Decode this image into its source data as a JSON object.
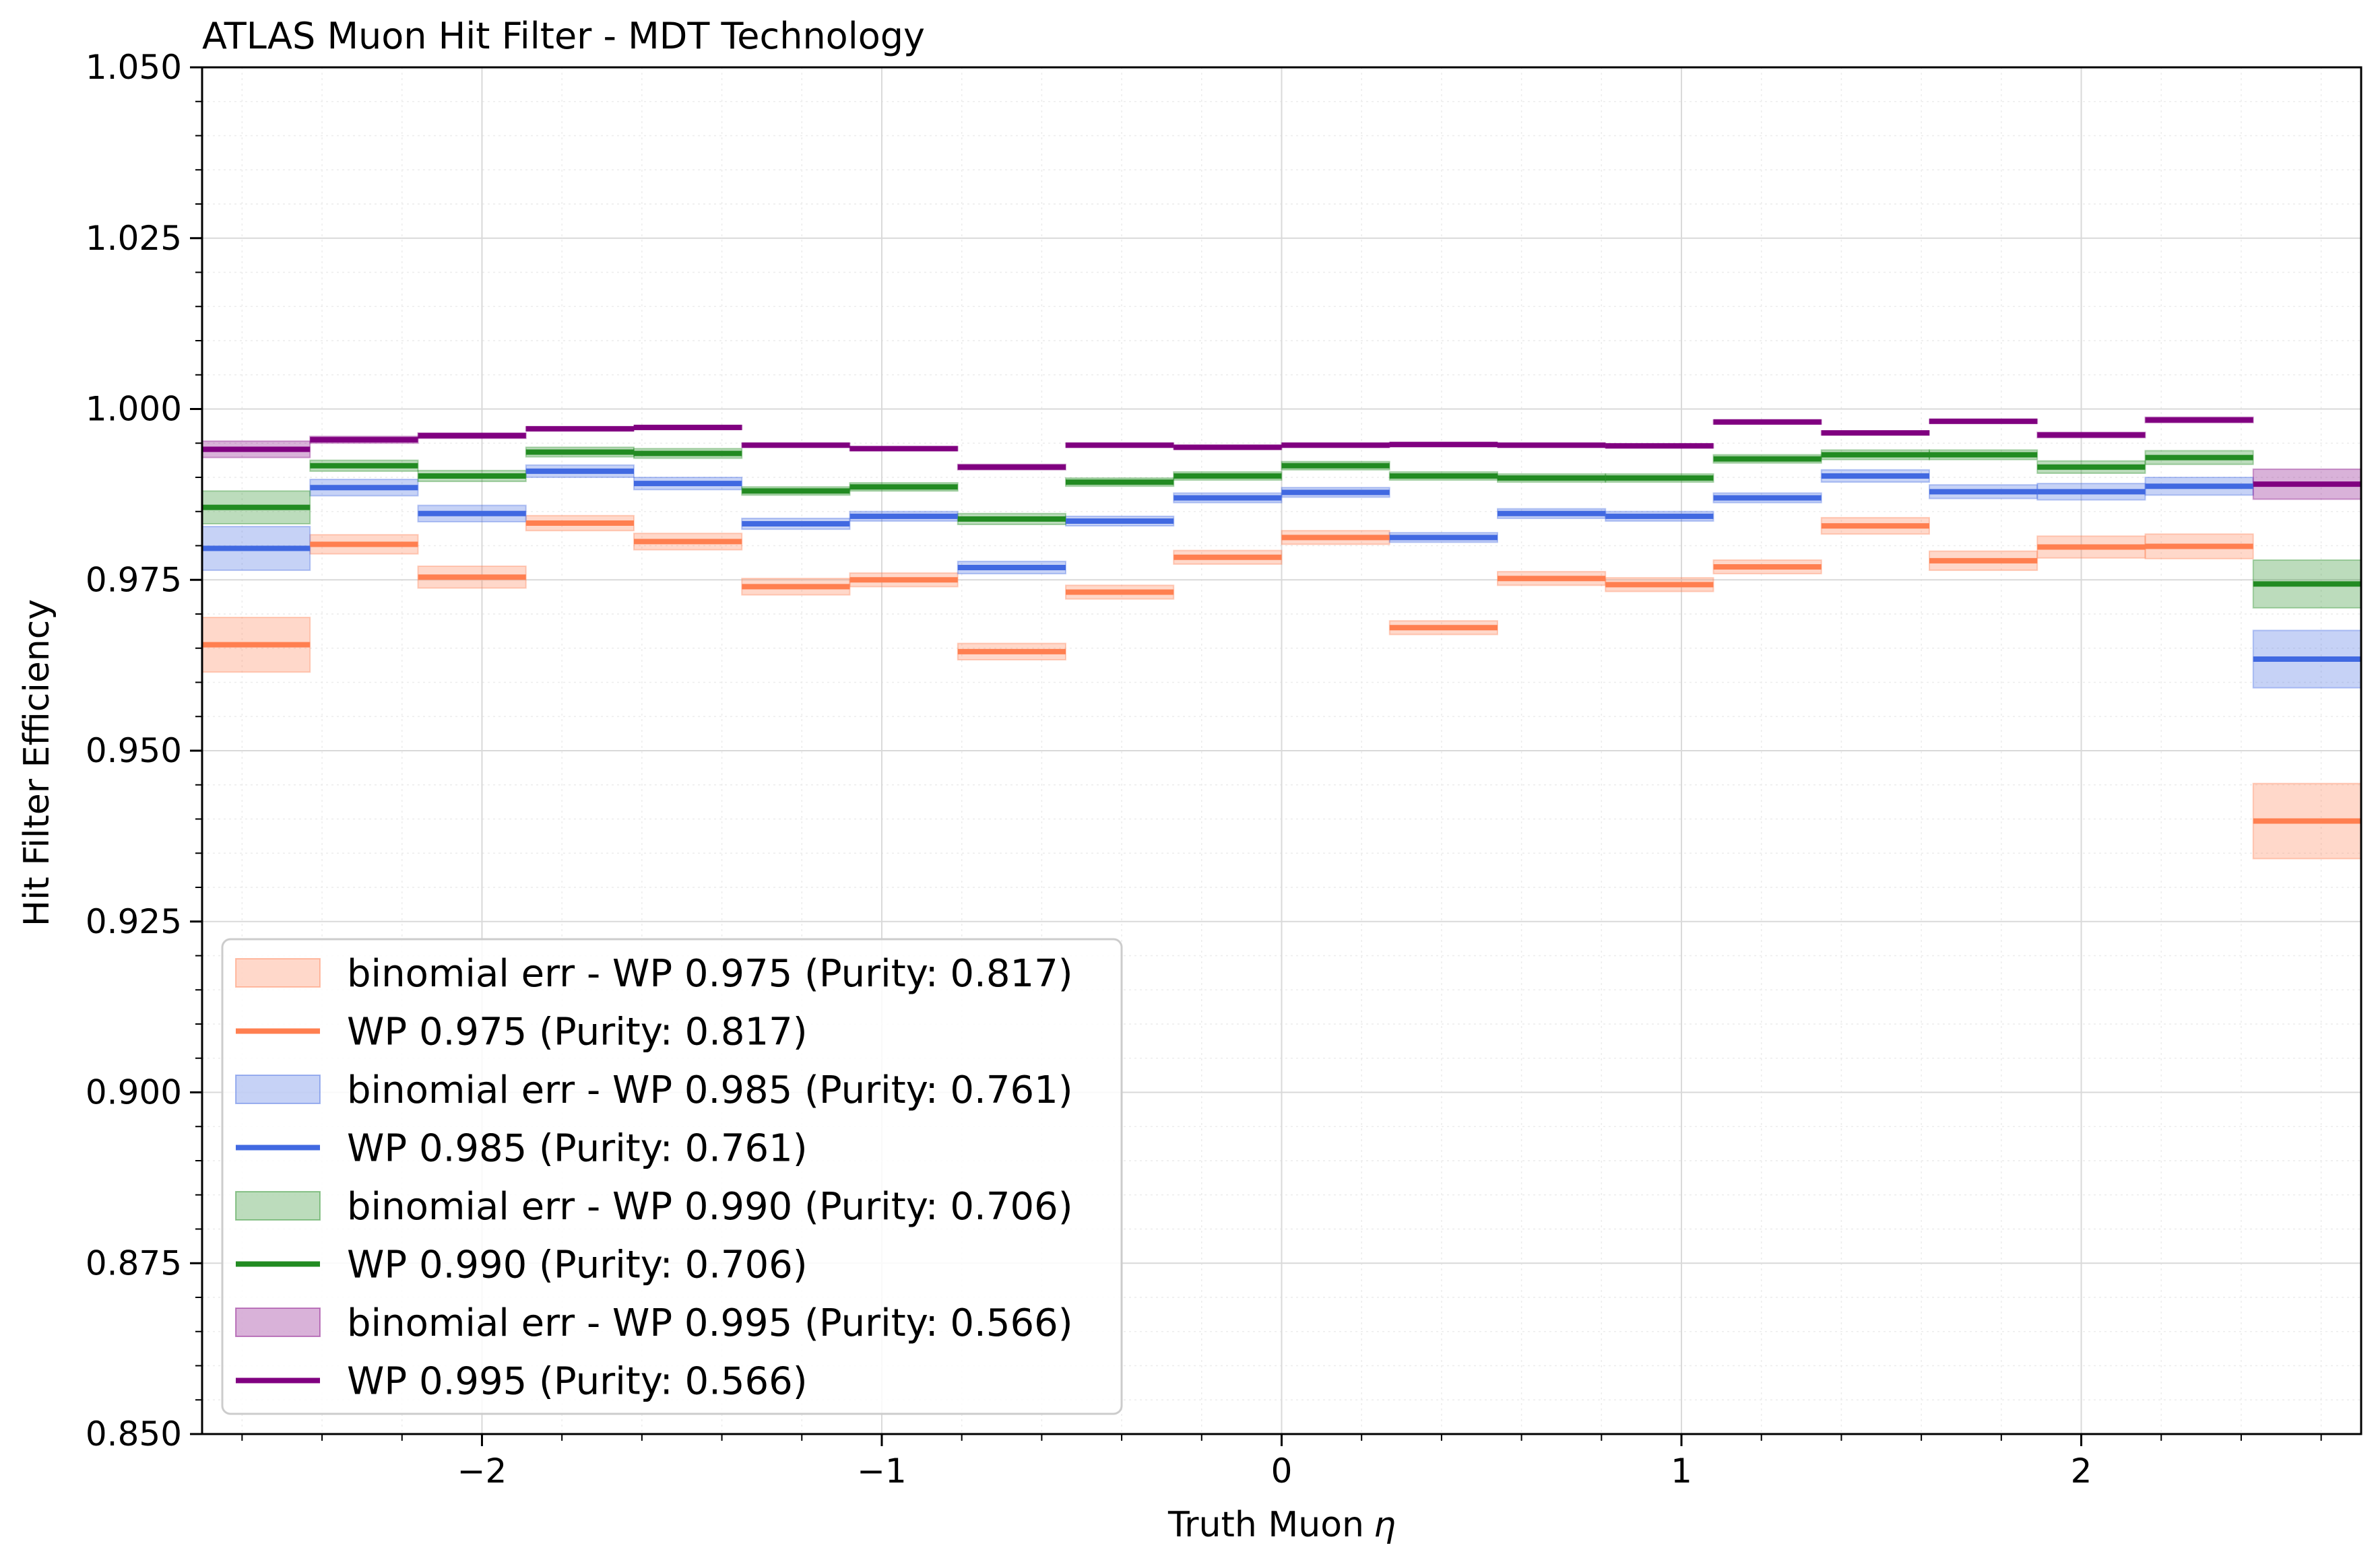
{
  "chart_data": {
    "type": "line",
    "title": "ATLAS Muon Hit Filter - MDT Technology",
    "xlabel": "Truth Muon",
    "xlabel_symbol": "η",
    "ylabel": "Hit Filter Efficiency",
    "xlim": [
      -2.7,
      2.7
    ],
    "ylim": [
      0.85,
      1.05
    ],
    "grid": true,
    "legend_position": "lower-left",
    "xticks": [
      -2,
      -1,
      0,
      1,
      2
    ],
    "xtick_labels": [
      "−2",
      "−1",
      "0",
      "1",
      "2"
    ],
    "yticks": [
      0.85,
      0.875,
      0.9,
      0.925,
      0.95,
      0.975,
      1.0,
      1.025,
      1.05
    ],
    "ytick_labels": [
      "0.850",
      "0.875",
      "0.900",
      "0.925",
      "0.950",
      "0.975",
      "1.000",
      "1.025",
      "1.050"
    ],
    "bin_edges": [
      -2.7,
      -2.43,
      -2.16,
      -1.89,
      -1.62,
      -1.35,
      -1.08,
      -0.81,
      -0.54,
      -0.27,
      0.0,
      0.27,
      0.54,
      0.81,
      1.08,
      1.35,
      1.62,
      1.89,
      2.16,
      2.43,
      2.7
    ],
    "series": [
      {
        "name": "WP 0.975 (Purity: 0.817)",
        "band_label": "binomial err - WP 0.975 (Purity: 0.817)",
        "color": "#ff7f50",
        "values": [
          0.9655,
          0.9802,
          0.9754,
          0.9833,
          0.9806,
          0.974,
          0.975,
          0.9645,
          0.9732,
          0.9783,
          0.9812,
          0.968,
          0.9752,
          0.9743,
          0.9769,
          0.9829,
          0.9778,
          0.9798,
          0.9799,
          0.9397
        ],
        "errors": [
          0.004,
          0.0014,
          0.0016,
          0.0011,
          0.0012,
          0.0012,
          0.001,
          0.0012,
          0.001,
          0.001,
          0.001,
          0.001,
          0.001,
          0.001,
          0.001,
          0.0012,
          0.0014,
          0.0016,
          0.0018,
          0.0055
        ]
      },
      {
        "name": "WP 0.985 (Purity: 0.761)",
        "band_label": "binomial err - WP 0.985 (Purity: 0.761)",
        "color": "#4169e1",
        "values": [
          0.9796,
          0.9885,
          0.9847,
          0.9909,
          0.9891,
          0.9832,
          0.9843,
          0.9768,
          0.9836,
          0.987,
          0.9878,
          0.9812,
          0.9847,
          0.9843,
          0.987,
          0.9902,
          0.9879,
          0.9879,
          0.9887,
          0.9634
        ],
        "errors": [
          0.0032,
          0.0012,
          0.0012,
          0.0009,
          0.0009,
          0.0008,
          0.0007,
          0.0009,
          0.0007,
          0.0007,
          0.0007,
          0.0007,
          0.0007,
          0.0007,
          0.0007,
          0.0009,
          0.001,
          0.0012,
          0.0013,
          0.0042
        ]
      },
      {
        "name": "WP 0.990 (Purity: 0.706)",
        "band_label": "binomial err - WP 0.990 (Purity: 0.706)",
        "color": "#228b22",
        "values": [
          0.9856,
          0.9917,
          0.9902,
          0.9937,
          0.9935,
          0.988,
          0.9886,
          0.9839,
          0.9893,
          0.9902,
          0.9917,
          0.9902,
          0.9899,
          0.9899,
          0.9927,
          0.9933,
          0.9933,
          0.9915,
          0.9929,
          0.9744
        ],
        "errors": [
          0.0024,
          0.0008,
          0.0008,
          0.0007,
          0.0007,
          0.0006,
          0.0006,
          0.0008,
          0.0006,
          0.0006,
          0.0006,
          0.0006,
          0.0006,
          0.0006,
          0.0006,
          0.0007,
          0.0007,
          0.0009,
          0.001,
          0.0035
        ]
      },
      {
        "name": "WP 0.995 (Purity: 0.566)",
        "band_label": "binomial err - WP 0.995 (Purity: 0.566)",
        "color": "#800080",
        "values": [
          0.9941,
          0.9955,
          0.9961,
          0.9971,
          0.9973,
          0.9947,
          0.9942,
          0.9915,
          0.9947,
          0.9944,
          0.9947,
          0.9948,
          0.9947,
          0.9946,
          0.9981,
          0.9965,
          0.9982,
          0.9962,
          0.9984,
          0.989
        ],
        "errors": [
          0.0012,
          0.0005,
          0.0004,
          0.0003,
          0.0003,
          0.0003,
          0.0003,
          0.0004,
          0.0003,
          0.0003,
          0.0003,
          0.0003,
          0.0003,
          0.0003,
          0.0003,
          0.0003,
          0.0003,
          0.0004,
          0.0004,
          0.0022
        ]
      }
    ]
  }
}
